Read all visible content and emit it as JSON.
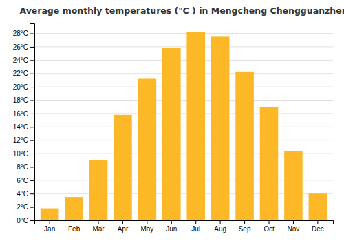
{
  "chart_data": {
    "type": "bar",
    "title": "Average monthly temperatures (°C ) in Mengcheng Chengguanzhen",
    "categories": [
      "Jan",
      "Feb",
      "Mar",
      "Apr",
      "May",
      "Jun",
      "Jul",
      "Aug",
      "Sep",
      "Oct",
      "Nov",
      "Dec"
    ],
    "values": [
      1.8,
      3.5,
      9.0,
      15.8,
      21.2,
      25.8,
      28.2,
      27.5,
      22.3,
      17.0,
      10.4,
      4.0
    ],
    "color": "#FDB827",
    "ylim": [
      0,
      29.5
    ],
    "yticks": [
      {
        "value": 0,
        "label": "0°C"
      },
      {
        "value": 2,
        "label": "2°C"
      },
      {
        "value": 4,
        "label": "4°C"
      },
      {
        "value": 6,
        "label": "6°C"
      },
      {
        "value": 8,
        "label": "8°C"
      },
      {
        "value": 10,
        "label": "10°C"
      },
      {
        "value": 12,
        "label": "12°C"
      },
      {
        "value": 14,
        "label": "14°C"
      },
      {
        "value": 16,
        "label": "16°C"
      },
      {
        "value": 18,
        "label": "18°C"
      },
      {
        "value": 20,
        "label": "20°C"
      },
      {
        "value": 22,
        "label": "22°C"
      },
      {
        "value": 24,
        "label": "24°C"
      },
      {
        "value": 26,
        "label": "26°C"
      },
      {
        "value": 28,
        "label": "28°C"
      }
    ],
    "grid": true
  }
}
